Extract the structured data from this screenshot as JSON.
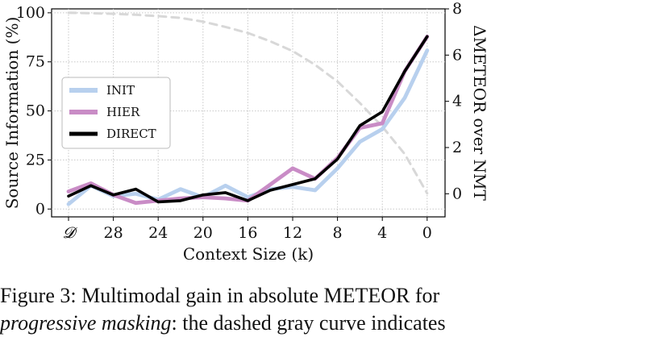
{
  "chart_data": {
    "type": "line",
    "xlabel": "Context Size (k)",
    "ylabel_left": "Source Information (%)",
    "ylabel_right": "ΔMETEOR over NMT",
    "x_tick_labels": [
      "𝓓",
      "28",
      "24",
      "20",
      "16",
      "12",
      "8",
      "4",
      "0"
    ],
    "x_positions": [
      "D",
      30,
      28,
      26,
      24,
      22,
      20,
      18,
      16,
      14,
      12,
      10,
      8,
      6,
      4,
      2,
      0
    ],
    "ylim_left": [
      -4,
      102
    ],
    "yticks_left": [
      "0",
      "25",
      "50",
      "75",
      "100"
    ],
    "ylim_right": [
      -1,
      8
    ],
    "yticks_right": [
      "0",
      "2",
      "4",
      "6",
      "8"
    ],
    "grid": true,
    "legend_position": "center-left",
    "series": [
      {
        "name": "INIT",
        "axis": "right",
        "color": "#b8d0ee",
        "values": [
          -0.45,
          0.35,
          -0.1,
          0.0,
          -0.25,
          0.2,
          -0.15,
          0.35,
          -0.15,
          0.2,
          0.3,
          0.15,
          1.1,
          2.25,
          2.8,
          4.15,
          6.2
        ]
      },
      {
        "name": "HIER",
        "axis": "right",
        "color": "#c98cc6",
        "values": [
          0.1,
          0.45,
          -0.05,
          -0.4,
          -0.3,
          -0.2,
          -0.15,
          -0.2,
          -0.3,
          0.4,
          1.1,
          0.65,
          1.55,
          2.85,
          3.05,
          5.3,
          6.8
        ]
      },
      {
        "name": "DIRECT",
        "axis": "right",
        "color": "#000000",
        "values": [
          -0.1,
          0.35,
          -0.05,
          0.2,
          -0.35,
          -0.3,
          -0.05,
          0.05,
          -0.3,
          0.15,
          0.4,
          0.65,
          1.5,
          2.95,
          3.55,
          5.3,
          6.8
        ]
      },
      {
        "name": "Source Information",
        "axis": "left",
        "color": "#d8d8d8",
        "dashed": true,
        "values": [
          100,
          99.8,
          99.5,
          99,
          98.3,
          97.4,
          95.5,
          92.8,
          89.7,
          85.5,
          80.5,
          73.5,
          65,
          54,
          42,
          28,
          8
        ]
      }
    ]
  },
  "caption": {
    "line1": "Figure 3:  Multimodal gain in absolute METEOR for",
    "line2_em": "progressive masking",
    "line2_rest": ":  the dashed gray curve indicates"
  }
}
